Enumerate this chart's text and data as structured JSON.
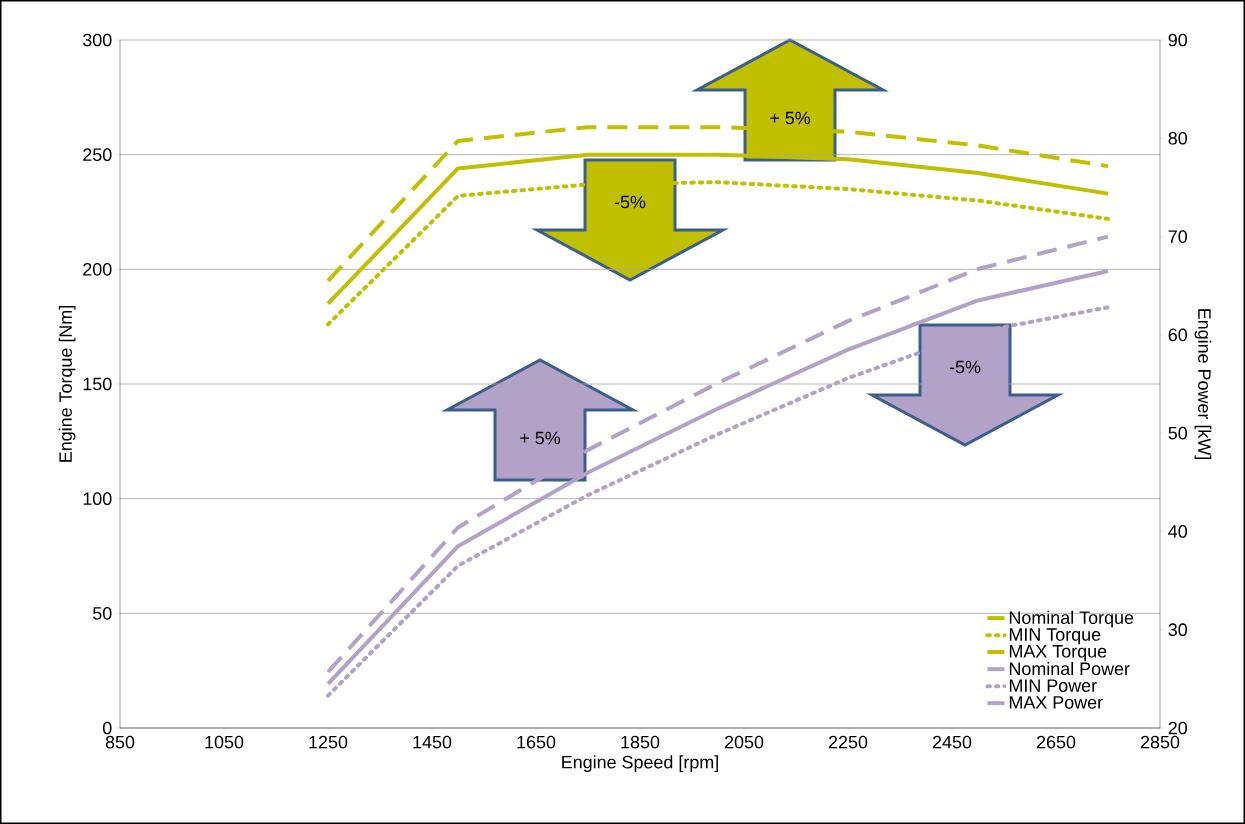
{
  "chart_data": {
    "type": "line",
    "xlabel": "Engine Speed [rpm]",
    "ylabel": "Engine Torque [Nm]",
    "y2label": "Engine Power [kW]",
    "x": [
      1250,
      1500,
      1750,
      2000,
      2250,
      2500,
      2750
    ],
    "xlim": [
      850,
      2850
    ],
    "xticks": [
      850,
      1050,
      1250,
      1450,
      1650,
      1850,
      2050,
      2250,
      2450,
      2650,
      2850
    ],
    "ylim": [
      0,
      300
    ],
    "yticks": [
      0,
      50,
      100,
      150,
      200,
      250,
      300
    ],
    "y2lim": [
      20,
      90
    ],
    "y2ticks": [
      20,
      30,
      40,
      50,
      60,
      70,
      80,
      90
    ],
    "grid": "y",
    "legend": "bottom right",
    "marker": "none",
    "series": [
      {
        "name": "Nominal Torque",
        "color": "#c0c000",
        "line_style": "solid",
        "values": [
          185,
          244,
          250,
          250,
          248,
          242,
          233
        ]
      },
      {
        "name": "MIN Torque",
        "color": "#c0c000",
        "line_style": "dotted",
        "values": [
          176,
          232,
          237,
          238,
          235,
          230,
          222
        ]
      },
      {
        "name": "MAX Torque",
        "color": "#c0c000",
        "line_style": "dashed",
        "values": [
          195,
          256,
          262,
          262,
          260,
          254,
          245
        ]
      },
      {
        "name": "Nominal Power",
        "color": "#b3a2c7",
        "line_style": "solid",
        "axis": "y2",
        "values": [
          24.5,
          38.5,
          46,
          52.5,
          58.5,
          63.5,
          66.5
        ]
      },
      {
        "name": "MIN Power",
        "color": "#b3a2c7",
        "line_style": "dotted",
        "axis": "y2",
        "values": [
          23.3,
          36.5,
          43.7,
          49.9,
          55.6,
          60.3,
          62.8
        ]
      },
      {
        "name": "MAX Power",
        "color": "#b3a2c7",
        "line_style": "dashed",
        "axis": "y2",
        "values": [
          25.7,
          40.4,
          48.3,
          55.1,
          61.4,
          66.7,
          70
        ]
      }
    ],
    "annotations": [
      "+ 5%",
      "-5%",
      "+ 5%",
      "-5%"
    ]
  }
}
